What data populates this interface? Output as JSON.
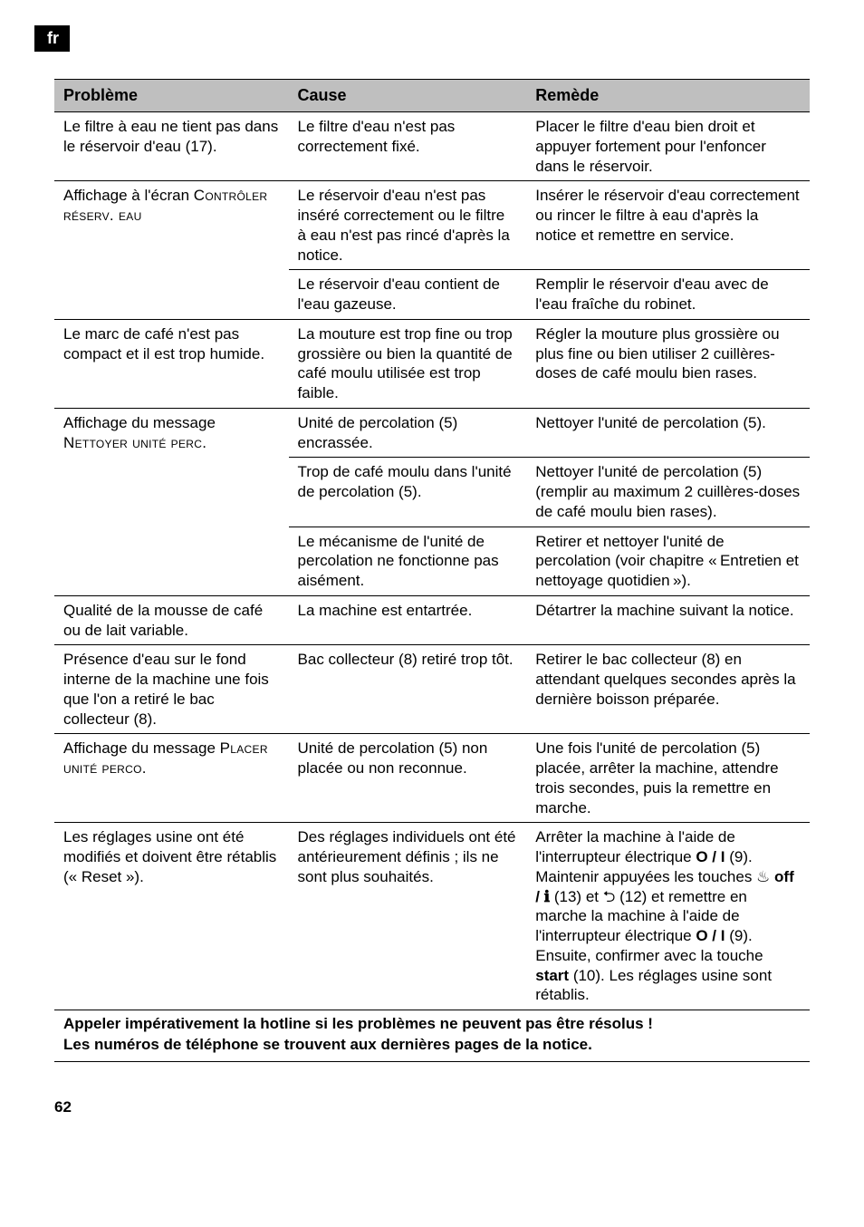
{
  "page": {
    "lang_tag": "fr",
    "page_number": "62"
  },
  "table": {
    "headers": {
      "problem": "Problème",
      "cause": "Cause",
      "remedy": "Remède"
    },
    "rows": [
      {
        "problem": "Le filtre à eau ne tient pas dans le réservoir d'eau (17).",
        "cause": "Le filtre d'eau n'est pas correctement fixé.",
        "remedy": "Placer le filtre d'eau bien droit et appuyer fortement pour l'enfoncer dans le réservoir.",
        "group_end": true
      },
      {
        "problem_html": "Affichage à l'écran <span class=\"sc\">Contrôler réserv. eau</span>",
        "cause": "Le réservoir d'eau n'est pas inséré correctement ou le filtre à eau n'est pas rincé d'après la notice.",
        "remedy": "Insérer le réservoir d'eau correc­tement ou rincer le filtre à eau d'après la notice et remettre en service.",
        "rowspan_problem": 2
      },
      {
        "cause": "Le réservoir d'eau contient de l'eau gazeuse.",
        "remedy": "Remplir le réservoir d'eau avec de l'eau fraîche du robinet.",
        "group_end": true
      },
      {
        "problem": "Le marc de café n'est pas compact et il est trop humide.",
        "cause": "La mouture est trop fine ou trop grossière ou bien la quantité de café moulu utilisée est trop faible.",
        "remedy": "Régler la mouture plus gros­sière ou plus fine ou bien utiliser 2 cuillères-doses de café moulu bien rases.",
        "group_end": true
      },
      {
        "problem_html": "Affichage du message <span class=\"sc\">Nettoyer unité perc.</span>",
        "cause": "Unité de percolation (5) encrassée.",
        "remedy": "Nettoyer l'unité de percolation (5).",
        "rowspan_problem": 3
      },
      {
        "cause": "Trop de café moulu dans l'unité de percolation (5).",
        "remedy": "Nettoyer l'unité de percolation (5) (remplir au maximum 2 cuil­lères-doses de café moulu bien rases)."
      },
      {
        "cause": "Le mécanisme de l'unité de percolation ne fonctionne pas aisément.",
        "remedy": "Retirer et nettoyer l'unité de percolation (voir chapitre « Entretien et nettoyage quotidien »).",
        "group_end": true
      },
      {
        "problem": "Qualité de la mousse de café ou de lait variable.",
        "cause": "La machine est entartrée.",
        "remedy": "Détartrer la machine suivant la notice.",
        "group_end": true
      },
      {
        "problem": "Présence d'eau sur le fond interne de la machine une fois que l'on a retiré le bac collecteur (8).",
        "cause": "Bac collecteur (8) retiré trop tôt.",
        "remedy": "Retirer le bac collecteur (8) en attendant quelques secondes après la dernière boisson préparée.",
        "group_end": true
      },
      {
        "problem_html": "Affichage du message <span class=\"sc\">Placer unité perco.</span>",
        "cause": "Unité de percolation (5) non placée ou non reconnue.",
        "remedy": "Une fois l'unité de percolation (5) placée, arrêter la machine, attendre trois secondes, puis la remettre en marche.",
        "group_end": true
      },
      {
        "problem": "Les réglages usine ont été modifiés et doivent être rétablis (« Reset »).",
        "cause": "Des réglages individuels ont été antérieurement définis ; ils ne sont plus souhaités.",
        "remedy_html": "Arrêter la machine à l'aide de l'interrupteur électrique <b>O / I</b> (9). Maintenir appuyées les touches <span class=\"ico\">♨</span> <b>off / ℹ</b> (13) et <span class=\"ico\">⮌</span> (12) et remettre en marche la machine à l'aide de l'interrupteur élec­trique <b>O / I</b> (9). Ensuite, confirmer avec la touche <b>start</b> (10). Les réglages usine sont rétablis.",
        "group_end": true
      }
    ]
  },
  "footer": {
    "line1": "Appeler impérativement la hotline si les problèmes ne peuvent pas être résolus !",
    "line2": "Les numéros de téléphone se trouvent aux dernières pages de la notice."
  }
}
